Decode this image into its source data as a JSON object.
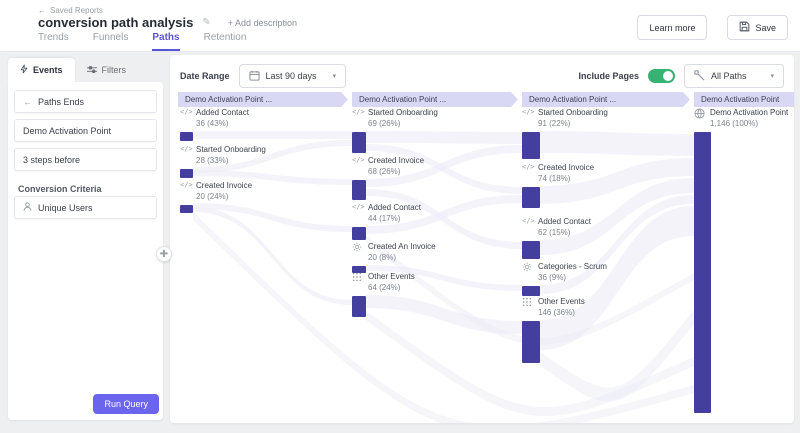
{
  "header": {
    "back_label": "Saved Reports",
    "title": "conversion path analysis",
    "add_description_label": "+ Add description",
    "learn_more_label": "Learn more",
    "save_label": "Save",
    "tabs": [
      {
        "label": "Trends",
        "active": false
      },
      {
        "label": "Funnels",
        "active": false
      },
      {
        "label": "Paths",
        "active": true
      },
      {
        "label": "Retention",
        "active": false
      }
    ]
  },
  "sidebar": {
    "tabs": [
      {
        "label": "Events",
        "icon": "bolt-icon",
        "active": true
      },
      {
        "label": "Filters",
        "icon": "filter-icon",
        "active": false
      }
    ],
    "paths_end_label": "Paths Ends",
    "event_name": "Demo Activation Point",
    "steps_label": "3 steps before",
    "criteria_heading": "Conversion Criteria",
    "criteria_value": "Unique Users",
    "run_query_label": "Run Query"
  },
  "controls": {
    "date_range_label": "Date Range",
    "date_range_value": "Last 90 days",
    "include_pages_label": "Include Pages",
    "include_pages_on": true,
    "paths_filter_value": "All Paths"
  },
  "chart_data": {
    "type": "sankey",
    "title": "conversion path analysis - Paths (3 steps before Demo Activation Point)",
    "columns": [
      {
        "header": "Demo Activation Point ...",
        "nodes": [
          {
            "label": "Added Contact",
            "value": 36,
            "pct": 43,
            "display": "36 (43%)",
            "icon": "code-event-icon"
          },
          {
            "label": "Started Onboarding",
            "value": 28,
            "pct": 33,
            "display": "28 (33%)",
            "icon": "code-event-icon"
          },
          {
            "label": "Created Invoice",
            "value": 20,
            "pct": 24,
            "display": "20 (24%)",
            "icon": "code-event-icon"
          }
        ]
      },
      {
        "header": "Demo Activation Point ...",
        "nodes": [
          {
            "label": "Started Onboarding",
            "value": 69,
            "pct": 26,
            "display": "69 (26%)",
            "icon": "code-event-icon"
          },
          {
            "label": "Created Invoice",
            "value": 68,
            "pct": 26,
            "display": "68 (26%)",
            "icon": "code-event-icon"
          },
          {
            "label": "Added Contact",
            "value": 44,
            "pct": 17,
            "display": "44 (17%)",
            "icon": "code-event-icon"
          },
          {
            "label": "Created An Invoice",
            "value": 20,
            "pct": 8,
            "display": "20 (8%)",
            "icon": "custom-event-icon"
          },
          {
            "label": "Other Events",
            "value": 64,
            "pct": 24,
            "display": "64 (24%)",
            "icon": "grid-icon"
          }
        ]
      },
      {
        "header": "Demo Activation Point ...",
        "nodes": [
          {
            "label": "Started Onboarding",
            "value": 91,
            "pct": 22,
            "display": "91 (22%)",
            "icon": "code-event-icon"
          },
          {
            "label": "Created Invoice",
            "value": 74,
            "pct": 18,
            "display": "74 (18%)",
            "icon": "code-event-icon"
          },
          {
            "label": "Added Contact",
            "value": 62,
            "pct": 15,
            "display": "62 (15%)",
            "icon": "code-event-icon"
          },
          {
            "label": "Categories - Scrum",
            "value": 36,
            "pct": 9,
            "display": "36 (9%)",
            "icon": "custom-event-icon"
          },
          {
            "label": "Other Events",
            "value": 146,
            "pct": 36,
            "display": "146 (36%)",
            "icon": "grid-icon"
          }
        ]
      },
      {
        "header": "Demo Activation Point",
        "nodes": [
          {
            "label": "Demo Activation Point",
            "value": 1146,
            "pct": 100,
            "display": "1,146 (100%)",
            "icon": "globe-icon"
          }
        ]
      }
    ]
  },
  "colors": {
    "accent": "#5a54d8",
    "bar": "#443f9f",
    "band": "#d9d8f4",
    "flow": "#ecebf6",
    "toggle_on": "#38b273",
    "run_query": "#6b65ee"
  }
}
